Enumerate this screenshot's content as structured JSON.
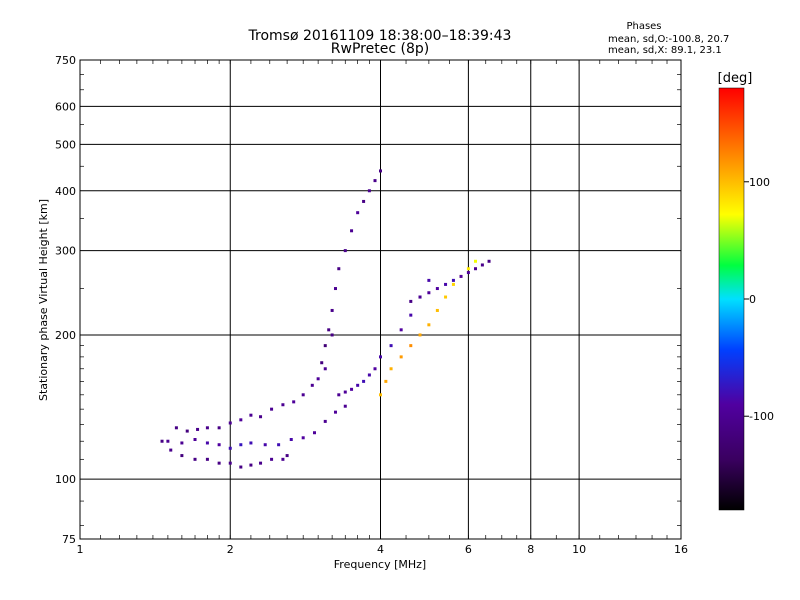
{
  "chart_data": {
    "type": "scatter",
    "title": "Tromsø 20161109 18:38:00–18:39:43",
    "subtitle": "RwPretec (8p)",
    "xlabel": "Frequency [MHz]",
    "ylabel": "Stationary phase Virtual Height [km]",
    "xscale": "log2",
    "yscale": "log",
    "xlim": [
      1,
      16
    ],
    "ylim": [
      75,
      750
    ],
    "x_ticks": [
      1,
      2,
      4,
      6,
      8,
      10,
      16
    ],
    "y_ticks": [
      75,
      100,
      200,
      300,
      400,
      500,
      600,
      750
    ],
    "grid": true,
    "colorbar": {
      "label": "[deg]",
      "range": [
        -180,
        180
      ],
      "ticks": [
        -100,
        0,
        100
      ],
      "colormap": [
        "#000000",
        "#5a007f",
        "#0000ff",
        "#00ffff",
        "#00ff00",
        "#ffff00",
        "#ff8000",
        "#ff0000"
      ]
    },
    "stats": {
      "title": "Phases",
      "line1": "mean, sd,O:-100.8, 20.7",
      "line2": "mean, sd,X:  89.1, 23.1"
    },
    "series": [
      {
        "x": [
          1.5,
          1.56,
          1.64,
          1.72,
          1.8,
          1.9,
          2.0,
          2.1,
          2.2,
          2.3,
          2.42,
          2.55,
          2.68,
          2.8,
          2.92,
          3.0,
          3.1,
          3.2
        ],
        "y": [
          120,
          128,
          126,
          127,
          128,
          128,
          131,
          133,
          136,
          135,
          140,
          143,
          145,
          150,
          157,
          162,
          170,
          200
        ],
        "phase": [
          -100,
          -110,
          -115,
          -105,
          -105,
          -110,
          -100,
          -95,
          -100,
          -105,
          -100,
          -100,
          -95,
          -100,
          -100,
          -95,
          -100,
          -110
        ]
      },
      {
        "x": [
          1.46,
          1.52,
          1.6,
          1.7,
          1.8,
          1.9,
          2.0,
          2.1,
          2.2,
          2.35,
          2.5,
          2.65,
          2.8,
          2.95,
          3.1,
          3.25,
          3.4
        ],
        "y": [
          120,
          115,
          119,
          121,
          119,
          118,
          116,
          118,
          119,
          118,
          118,
          121,
          122,
          125,
          132,
          138,
          142
        ],
        "phase": [
          -110,
          -105,
          -100,
          -95,
          -85,
          -90,
          -80,
          -75,
          -80,
          -85,
          -80,
          -85,
          -90,
          -95,
          -100,
          -95,
          -100
        ]
      },
      {
        "x": [
          1.6,
          1.7,
          1.8,
          1.9,
          2.0,
          2.1,
          2.2,
          2.3,
          2.42,
          2.55,
          2.6
        ],
        "y": [
          112,
          110,
          110,
          108,
          108,
          106,
          107,
          108,
          110,
          110,
          112
        ],
        "phase": [
          -115,
          -110,
          -110,
          -110,
          -105,
          -110,
          -110,
          -105,
          -100,
          -100,
          -110
        ]
      },
      {
        "x": [
          3.05,
          3.1,
          3.15,
          3.2,
          3.25,
          3.3,
          3.4,
          3.5,
          3.6,
          3.7,
          3.8,
          3.9,
          4.0
        ],
        "y": [
          175,
          190,
          205,
          225,
          250,
          275,
          300,
          330,
          360,
          380,
          400,
          420,
          440
        ],
        "phase": [
          -115,
          -120,
          -110,
          -105,
          -100,
          -110,
          -105,
          -100,
          -95,
          -110,
          -100,
          -105,
          -110
        ]
      },
      {
        "x": [
          3.3,
          3.4,
          3.5,
          3.6,
          3.7,
          3.8,
          3.9,
          4.0,
          4.2,
          4.4,
          4.6,
          4.8,
          5.0
        ],
        "y": [
          150,
          152,
          154,
          157,
          160,
          165,
          170,
          180,
          190,
          205,
          220,
          240,
          260
        ],
        "phase": [
          -100,
          -95,
          -90,
          -85,
          -80,
          -85,
          -90,
          -85,
          -80,
          -90,
          -85,
          -80,
          -85
        ]
      },
      {
        "x": [
          4.0,
          4.1,
          4.2,
          4.4,
          4.6,
          4.8,
          5.0,
          5.2,
          5.4,
          5.6,
          5.8,
          6.0,
          6.2
        ],
        "y": [
          150,
          160,
          170,
          180,
          190,
          200,
          210,
          225,
          240,
          255,
          265,
          275,
          285
        ],
        "phase": [
          100,
          110,
          105,
          115,
          120,
          110,
          105,
          100,
          95,
          90,
          85,
          80,
          70
        ]
      },
      {
        "x": [
          4.6,
          4.8,
          5.0,
          5.2,
          5.4,
          5.6,
          5.8,
          6.0,
          6.2,
          6.4,
          6.6
        ],
        "y": [
          235,
          240,
          245,
          250,
          255,
          260,
          265,
          270,
          275,
          280,
          285
        ],
        "phase": [
          -110,
          -100,
          -95,
          -90,
          -85,
          -80,
          -90,
          -95,
          -100,
          -105,
          -110
        ]
      }
    ]
  }
}
